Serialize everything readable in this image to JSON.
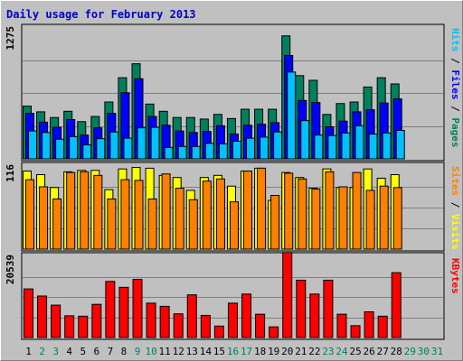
{
  "title": "Daily usage for February 2013",
  "colors": {
    "hits": "#00805C",
    "files": "#0000FF",
    "pages": "#00C0FF",
    "visits": "#FFFF00",
    "sites": "#FF8000",
    "kbytes": "#FF0000",
    "weekend_day": "#00805C",
    "weekday": "#000000",
    "future_day": "#00805C"
  },
  "chart_data": [
    {
      "type": "bar",
      "name_key": "pages_files_hits",
      "ymax_label": "1275",
      "ymax": 1275,
      "legend": [
        "Pages",
        "Files",
        "Hits"
      ],
      "x": [
        1,
        2,
        3,
        4,
        5,
        6,
        7,
        8,
        9,
        10,
        11,
        12,
        13,
        14,
        15,
        16,
        17,
        18,
        19,
        20,
        21,
        22,
        23,
        24,
        25,
        26,
        27,
        28
      ],
      "series": [
        {
          "name": "Hits",
          "values": [
            510,
            455,
            400,
            460,
            360,
            410,
            550,
            785,
            920,
            530,
            460,
            400,
            400,
            385,
            430,
            390,
            480,
            480,
            480,
            1190,
            805,
            760,
            430,
            535,
            550,
            695,
            785,
            725
          ]
        },
        {
          "name": "Files",
          "values": [
            440,
            355,
            305,
            380,
            230,
            300,
            440,
            640,
            775,
            410,
            325,
            270,
            255,
            265,
            320,
            240,
            325,
            335,
            350,
            1000,
            565,
            545,
            310,
            365,
            455,
            475,
            540,
            580
          ]
        },
        {
          "name": "Pages",
          "values": [
            270,
            255,
            190,
            215,
            135,
            195,
            260,
            200,
            300,
            305,
            110,
            120,
            120,
            150,
            145,
            170,
            200,
            210,
            260,
            840,
            370,
            230,
            225,
            250,
            320,
            240,
            250,
            275
          ]
        }
      ]
    },
    {
      "type": "bar",
      "name_key": "visits_sites",
      "ymax_label": "116",
      "ymax": 116,
      "legend": [
        "Visits",
        "Sites"
      ],
      "x": [
        1,
        2,
        3,
        4,
        5,
        6,
        7,
        8,
        9,
        10,
        11,
        12,
        13,
        14,
        15,
        16,
        17,
        18,
        19,
        20,
        21,
        22,
        23,
        24,
        25,
        26,
        27,
        28
      ],
      "series": [
        {
          "name": "Visits",
          "values": [
            109,
            104,
            86,
            108,
            110,
            110,
            83,
            112,
            114,
            113,
            103,
            100,
            82,
            100,
            103,
            88,
            109,
            113,
            68,
            107,
            100,
            85,
            112,
            86,
            86,
            112,
            99,
            104
          ]
        },
        {
          "name": "Sites",
          "values": [
            97,
            87,
            70,
            107,
            108,
            103,
            70,
            97,
            96,
            70,
            105,
            85,
            69,
            95,
            98,
            66,
            109,
            113,
            75,
            106,
            98,
            84,
            108,
            87,
            107,
            82,
            88,
            86
          ]
        }
      ]
    },
    {
      "type": "bar",
      "name_key": "kbytes",
      "ymax_label": "20539",
      "ymax": 20539,
      "legend": [
        "KBytes"
      ],
      "x": [
        1,
        2,
        3,
        4,
        5,
        6,
        7,
        8,
        9,
        10,
        11,
        12,
        13,
        14,
        15,
        16,
        17,
        18,
        19,
        20,
        21,
        22,
        23,
        24,
        25,
        26,
        27,
        28
      ],
      "series": [
        {
          "name": "KBytes",
          "values": [
            12300,
            10500,
            8200,
            5500,
            5400,
            8400,
            14200,
            12700,
            14700,
            8700,
            7900,
            6000,
            10800,
            5600,
            2900,
            8700,
            11000,
            5900,
            2700,
            21500,
            14500,
            11000,
            14500,
            5900,
            3000,
            6500,
            5400,
            16400
          ]
        }
      ]
    }
  ],
  "x_labels": [
    "1",
    "2",
    "3",
    "4",
    "5",
    "6",
    "7",
    "8",
    "9",
    "10",
    "11",
    "12",
    "13",
    "14",
    "15",
    "16",
    "17",
    "18",
    "19",
    "20",
    "21",
    "22",
    "23",
    "24",
    "25",
    "26",
    "27",
    "28",
    "29",
    "30",
    "31"
  ],
  "weekend_days": [
    2,
    3,
    9,
    10,
    16,
    17,
    23,
    24,
    29,
    30,
    31
  ]
}
